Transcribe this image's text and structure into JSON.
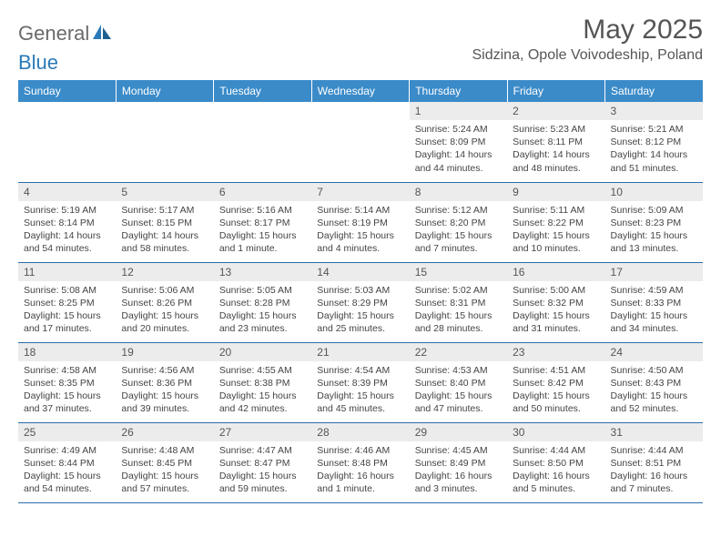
{
  "brand": {
    "part1": "General",
    "part2": "Blue"
  },
  "title": "May 2025",
  "location": "Sidzina, Opole Voivodeship, Poland",
  "colors": {
    "header_bg": "#3b8bc9",
    "header_text": "#ffffff",
    "daynum_bg": "#ececec",
    "border": "#2a6ea8",
    "brand_gray": "#6a6a6a",
    "brand_blue": "#2a7ab9"
  },
  "weekdays": [
    "Sunday",
    "Monday",
    "Tuesday",
    "Wednesday",
    "Thursday",
    "Friday",
    "Saturday"
  ],
  "weeks": [
    [
      null,
      null,
      null,
      null,
      {
        "n": "1",
        "sr": "5:24 AM",
        "ss": "8:09 PM",
        "dl": "14 hours and 44 minutes."
      },
      {
        "n": "2",
        "sr": "5:23 AM",
        "ss": "8:11 PM",
        "dl": "14 hours and 48 minutes."
      },
      {
        "n": "3",
        "sr": "5:21 AM",
        "ss": "8:12 PM",
        "dl": "14 hours and 51 minutes."
      }
    ],
    [
      {
        "n": "4",
        "sr": "5:19 AM",
        "ss": "8:14 PM",
        "dl": "14 hours and 54 minutes."
      },
      {
        "n": "5",
        "sr": "5:17 AM",
        "ss": "8:15 PM",
        "dl": "14 hours and 58 minutes."
      },
      {
        "n": "6",
        "sr": "5:16 AM",
        "ss": "8:17 PM",
        "dl": "15 hours and 1 minute."
      },
      {
        "n": "7",
        "sr": "5:14 AM",
        "ss": "8:19 PM",
        "dl": "15 hours and 4 minutes."
      },
      {
        "n": "8",
        "sr": "5:12 AM",
        "ss": "8:20 PM",
        "dl": "15 hours and 7 minutes."
      },
      {
        "n": "9",
        "sr": "5:11 AM",
        "ss": "8:22 PM",
        "dl": "15 hours and 10 minutes."
      },
      {
        "n": "10",
        "sr": "5:09 AM",
        "ss": "8:23 PM",
        "dl": "15 hours and 13 minutes."
      }
    ],
    [
      {
        "n": "11",
        "sr": "5:08 AM",
        "ss": "8:25 PM",
        "dl": "15 hours and 17 minutes."
      },
      {
        "n": "12",
        "sr": "5:06 AM",
        "ss": "8:26 PM",
        "dl": "15 hours and 20 minutes."
      },
      {
        "n": "13",
        "sr": "5:05 AM",
        "ss": "8:28 PM",
        "dl": "15 hours and 23 minutes."
      },
      {
        "n": "14",
        "sr": "5:03 AM",
        "ss": "8:29 PM",
        "dl": "15 hours and 25 minutes."
      },
      {
        "n": "15",
        "sr": "5:02 AM",
        "ss": "8:31 PM",
        "dl": "15 hours and 28 minutes."
      },
      {
        "n": "16",
        "sr": "5:00 AM",
        "ss": "8:32 PM",
        "dl": "15 hours and 31 minutes."
      },
      {
        "n": "17",
        "sr": "4:59 AM",
        "ss": "8:33 PM",
        "dl": "15 hours and 34 minutes."
      }
    ],
    [
      {
        "n": "18",
        "sr": "4:58 AM",
        "ss": "8:35 PM",
        "dl": "15 hours and 37 minutes."
      },
      {
        "n": "19",
        "sr": "4:56 AM",
        "ss": "8:36 PM",
        "dl": "15 hours and 39 minutes."
      },
      {
        "n": "20",
        "sr": "4:55 AM",
        "ss": "8:38 PM",
        "dl": "15 hours and 42 minutes."
      },
      {
        "n": "21",
        "sr": "4:54 AM",
        "ss": "8:39 PM",
        "dl": "15 hours and 45 minutes."
      },
      {
        "n": "22",
        "sr": "4:53 AM",
        "ss": "8:40 PM",
        "dl": "15 hours and 47 minutes."
      },
      {
        "n": "23",
        "sr": "4:51 AM",
        "ss": "8:42 PM",
        "dl": "15 hours and 50 minutes."
      },
      {
        "n": "24",
        "sr": "4:50 AM",
        "ss": "8:43 PM",
        "dl": "15 hours and 52 minutes."
      }
    ],
    [
      {
        "n": "25",
        "sr": "4:49 AM",
        "ss": "8:44 PM",
        "dl": "15 hours and 54 minutes."
      },
      {
        "n": "26",
        "sr": "4:48 AM",
        "ss": "8:45 PM",
        "dl": "15 hours and 57 minutes."
      },
      {
        "n": "27",
        "sr": "4:47 AM",
        "ss": "8:47 PM",
        "dl": "15 hours and 59 minutes."
      },
      {
        "n": "28",
        "sr": "4:46 AM",
        "ss": "8:48 PM",
        "dl": "16 hours and 1 minute."
      },
      {
        "n": "29",
        "sr": "4:45 AM",
        "ss": "8:49 PM",
        "dl": "16 hours and 3 minutes."
      },
      {
        "n": "30",
        "sr": "4:44 AM",
        "ss": "8:50 PM",
        "dl": "16 hours and 5 minutes."
      },
      {
        "n": "31",
        "sr": "4:44 AM",
        "ss": "8:51 PM",
        "dl": "16 hours and 7 minutes."
      }
    ]
  ],
  "labels": {
    "sunrise": "Sunrise: ",
    "sunset": "Sunset: ",
    "daylight": "Daylight: "
  }
}
